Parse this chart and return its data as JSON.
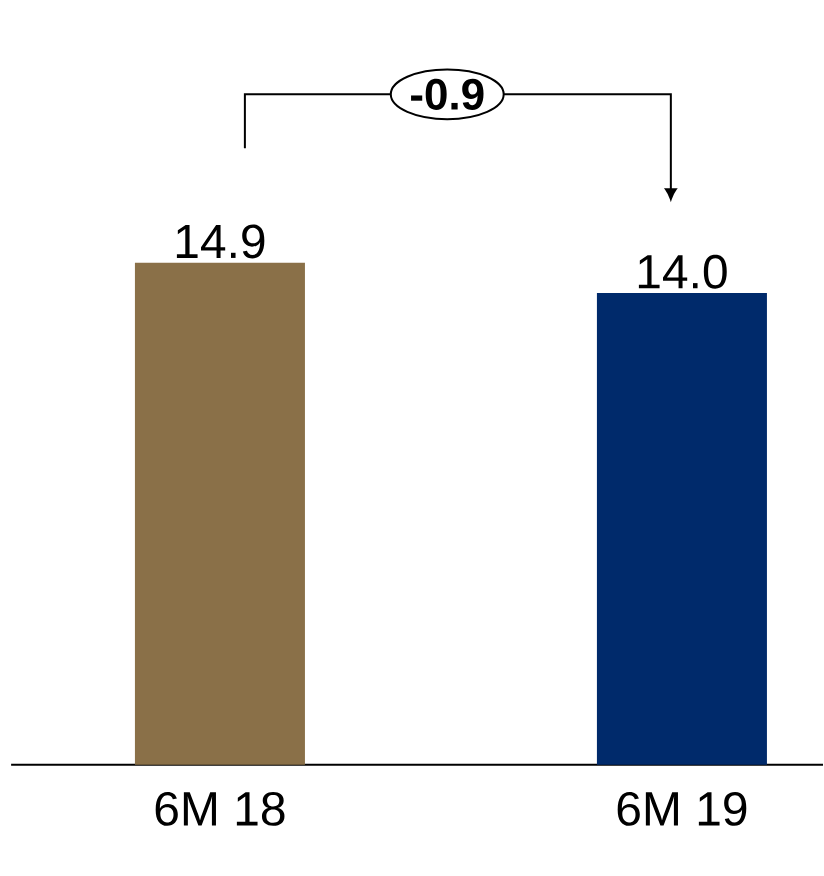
{
  "chart_data": {
    "type": "bar",
    "categories": [
      "6M 18",
      "6M 19"
    ],
    "values": [
      14.9,
      14.0
    ],
    "colors": [
      "#8a7048",
      "#002a6b"
    ],
    "value_labels": [
      "14.9",
      "14.0"
    ],
    "annotations": [
      "**-0.9**"
    ]
  }
}
